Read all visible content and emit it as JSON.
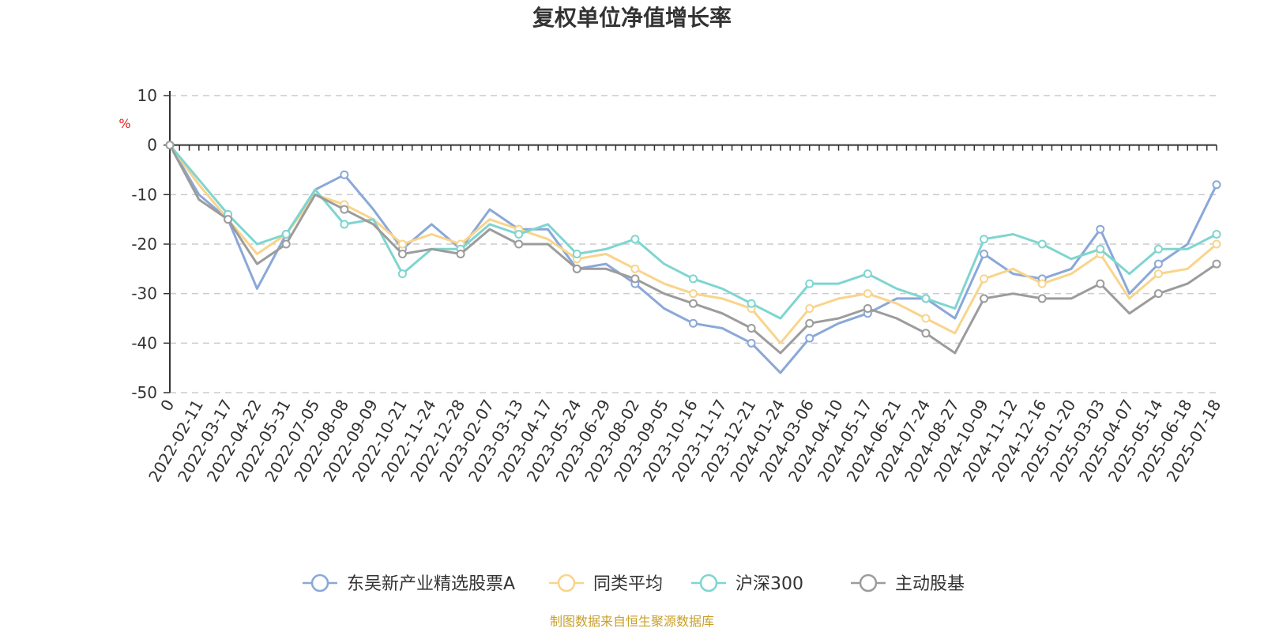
{
  "chart_data": {
    "type": "line",
    "title": "复权单位净值增长率",
    "ylabel": "%",
    "ylim": [
      -50,
      10
    ],
    "yticks": [
      10,
      0,
      -10,
      -20,
      -30,
      -40,
      -50
    ],
    "grid": true,
    "legend_position": "bottom",
    "x_tick_labels": [
      "0",
      "2022-02-11",
      "2022-03-17",
      "2022-04-22",
      "2022-05-31",
      "2022-07-05",
      "2022-08-08",
      "2022-09-09",
      "2022-10-21",
      "2022-11-24",
      "2022-12-28",
      "2023-02-07",
      "2023-03-13",
      "2023-04-17",
      "2023-05-24",
      "2023-06-29",
      "2023-08-02",
      "2023-09-05",
      "2023-10-16",
      "2023-11-17",
      "2023-12-21",
      "2024-01-24",
      "2024-03-06",
      "2024-04-10",
      "2024-05-17",
      "2024-06-21",
      "2024-07-24",
      "2024-08-27",
      "2024-10-09",
      "2024-11-12",
      "2024-12-16",
      "2025-01-20",
      "2025-03-03",
      "2025-04-07",
      "2025-05-14",
      "2025-06-18",
      "2025-07-18"
    ],
    "x": [
      "0",
      "2022-02-11",
      "2022-03-17",
      "2022-04-22",
      "2022-05-31",
      "2022-07-05",
      "2022-08-08",
      "2022-09-09",
      "2022-10-21",
      "2022-11-24",
      "2022-12-28",
      "2023-02-07",
      "2023-03-13",
      "2023-04-17",
      "2023-05-24",
      "2023-06-29",
      "2023-08-02",
      "2023-09-05",
      "2023-10-16",
      "2023-11-17",
      "2023-12-21",
      "2024-01-24",
      "2024-03-06",
      "2024-04-10",
      "2024-05-17",
      "2024-06-21",
      "2024-07-24",
      "2024-08-27",
      "2024-10-09",
      "2024-11-12",
      "2024-12-16",
      "2025-01-20",
      "2025-03-03",
      "2025-04-07",
      "2025-05-14",
      "2025-06-18",
      "2025-07-18"
    ],
    "series": [
      {
        "name": "东吴新产业精选股票A",
        "color": "#8aa8d8",
        "values": [
          0,
          -10,
          -15,
          -29,
          -18,
          -9,
          -6,
          -13,
          -21,
          -16,
          -21,
          -13,
          -17,
          -17,
          -25,
          -24,
          -28,
          -33,
          -36,
          -37,
          -40,
          -46,
          -39,
          -36,
          -34,
          -31,
          -31,
          -35,
          -22,
          -26,
          -27,
          -25,
          -17,
          -30,
          -24,
          -20,
          -8
        ]
      },
      {
        "name": "同类平均",
        "color": "#f9d48b",
        "values": [
          0,
          -8,
          -15,
          -22,
          -18,
          -10,
          -12,
          -15,
          -20,
          -18,
          -20,
          -15,
          -17,
          -19,
          -23,
          -22,
          -25,
          -28,
          -30,
          -31,
          -33,
          -40,
          -33,
          -31,
          -30,
          -32,
          -35,
          -38,
          -27,
          -25,
          -28,
          -26,
          -22,
          -31,
          -26,
          -25,
          -20
        ]
      },
      {
        "name": "沪深300",
        "color": "#7fd5d0",
        "values": [
          0,
          -7,
          -14,
          -20,
          -18,
          -9,
          -16,
          -15,
          -26,
          -21,
          -21,
          -16,
          -18,
          -16,
          -22,
          -21,
          -19,
          -24,
          -27,
          -29,
          -32,
          -35,
          -28,
          -28,
          -26,
          -29,
          -31,
          -33,
          -19,
          -18,
          -20,
          -23,
          -21,
          -26,
          -21,
          -21,
          -18
        ]
      },
      {
        "name": "主动股基",
        "color": "#9c9c9c",
        "values": [
          0,
          -11,
          -15,
          -24,
          -20,
          -10,
          -13,
          -16,
          -22,
          -21,
          -22,
          -17,
          -20,
          -20,
          -25,
          -25,
          -27,
          -30,
          -32,
          -34,
          -37,
          -42,
          -36,
          -35,
          -33,
          -35,
          -38,
          -42,
          -31,
          -30,
          -31,
          -31,
          -28,
          -34,
          -30,
          -28,
          -24
        ]
      }
    ]
  },
  "source_note": "制图数据来自恒生聚源数据库",
  "colors": {
    "axis": "#333333",
    "grid": "#cccccc",
    "unit": "#e02020",
    "source": "#c8a02a"
  }
}
